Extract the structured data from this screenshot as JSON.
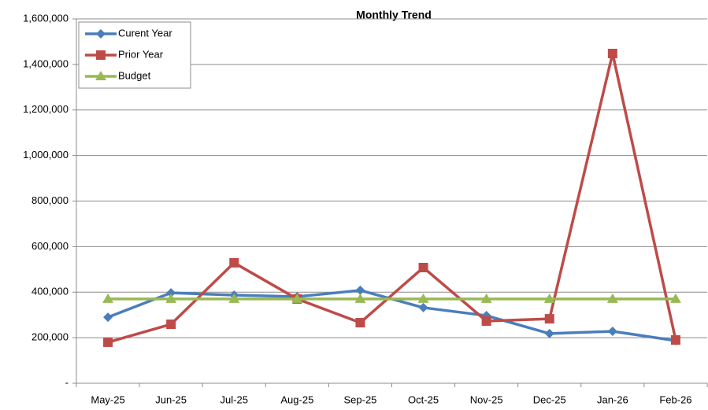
{
  "chart_data": {
    "type": "line",
    "title": "Monthly Trend",
    "categories": [
      "May-25",
      "Jun-25",
      "Jul-25",
      "Aug-25",
      "Sep-25",
      "Oct-25",
      "Nov-25",
      "Dec-25",
      "Jan-26",
      "Feb-26"
    ],
    "series": [
      {
        "name": "Curent Year",
        "color": "#4a7ebb",
        "marker": "diamond",
        "values": [
          290000,
          397000,
          387000,
          380000,
          408000,
          332000,
          297000,
          218000,
          228000,
          187000
        ]
      },
      {
        "name": "Prior Year",
        "color": "#be4b48",
        "marker": "square",
        "values": [
          180000,
          259000,
          529000,
          370000,
          266000,
          508000,
          273000,
          283000,
          1448000,
          190000
        ]
      },
      {
        "name": "Budget",
        "color": "#98b954",
        "marker": "triangle",
        "values": [
          370000,
          370000,
          370000,
          370000,
          370000,
          370000,
          370000,
          370000,
          370000,
          370000
        ]
      }
    ],
    "ylim": [
      0,
      1600000
    ],
    "yticks": [
      {
        "value": 0,
        "label": "-"
      },
      {
        "value": 200000,
        "label": "200,000"
      },
      {
        "value": 400000,
        "label": "400,000"
      },
      {
        "value": 600000,
        "label": "600,000"
      },
      {
        "value": 800000,
        "label": "800,000"
      },
      {
        "value": 1000000,
        "label": "1,000,000"
      },
      {
        "value": 1200000,
        "label": "1,200,000"
      },
      {
        "value": 1400000,
        "label": "1,400,000"
      },
      {
        "value": 1600000,
        "label": "1,600,000"
      }
    ],
    "grid": true,
    "legend": "top-left"
  }
}
